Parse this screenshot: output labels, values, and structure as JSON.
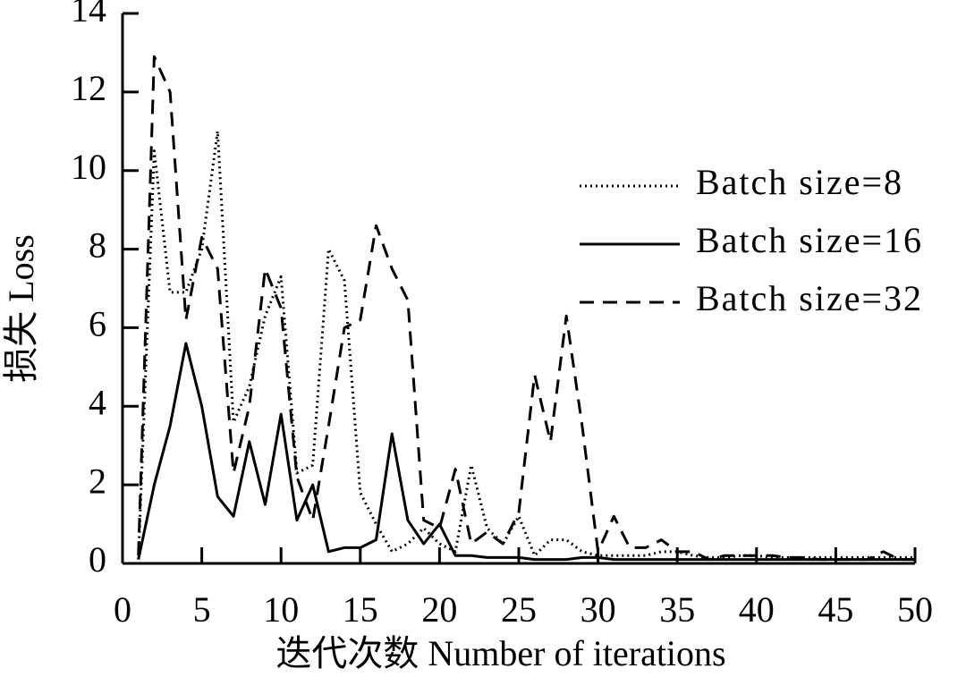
{
  "chart_data": {
    "type": "line",
    "x_label": "迭代次数 Number of iterations",
    "y_label": "损失 Loss",
    "x": [
      1,
      2,
      3,
      4,
      5,
      6,
      7,
      8,
      9,
      10,
      11,
      12,
      13,
      14,
      15,
      16,
      17,
      18,
      19,
      20,
      21,
      22,
      23,
      24,
      25,
      26,
      27,
      28,
      29,
      30,
      31,
      32,
      33,
      34,
      35,
      36,
      37,
      38,
      39,
      40,
      41,
      42,
      43,
      44,
      45,
      46,
      47,
      48,
      49,
      50
    ],
    "series": [
      {
        "name": "Batch size=8",
        "color": "#000000",
        "line_style": "dotted",
        "values": [
          0.1,
          10.5,
          6.9,
          6.9,
          8,
          11,
          3.6,
          4.5,
          6.3,
          7.3,
          2.3,
          2.5,
          8,
          7.2,
          1.8,
          1,
          0.3,
          0.5,
          0.9,
          0.5,
          0.3,
          2.5,
          0.9,
          0.5,
          1.2,
          0.2,
          0.6,
          0.6,
          0.3,
          0.2,
          0.2,
          0.2,
          0.2,
          0.3,
          0.3,
          0.2,
          0.15,
          0.15,
          0.2,
          0.2,
          0.15,
          0.15,
          0.15,
          0.15,
          0.15,
          0.15,
          0.15,
          0.15,
          0.15,
          0.15
        ]
      },
      {
        "name": "Batch size=16",
        "color": "#000000",
        "line_style": "solid",
        "values": [
          0.1,
          2,
          3.5,
          5.6,
          4,
          1.7,
          1.2,
          3.1,
          1.5,
          3.8,
          1.1,
          2,
          0.3,
          0.4,
          0.4,
          0.6,
          3.3,
          1.1,
          0.5,
          1,
          0.2,
          0.2,
          0.15,
          0.15,
          0.15,
          0.1,
          0.1,
          0.1,
          0.15,
          0.15,
          0.1,
          0.1,
          0.1,
          0.1,
          0.1,
          0.1,
          0.1,
          0.1,
          0.1,
          0.1,
          0.1,
          0.1,
          0.1,
          0.1,
          0.1,
          0.1,
          0.1,
          0.1,
          0.1,
          0.1
        ]
      },
      {
        "name": "Batch size=32",
        "color": "#000000",
        "line_style": "dashed",
        "values": [
          0.2,
          12.9,
          12,
          6.2,
          8.3,
          7.5,
          2.3,
          4,
          7.5,
          6.5,
          2.2,
          1.1,
          3.5,
          6,
          6.2,
          8.6,
          7.5,
          6.7,
          1.1,
          0.9,
          2.4,
          0.5,
          0.8,
          0.5,
          1.3,
          4.8,
          3.1,
          6.3,
          3.5,
          0.3,
          1.2,
          0.4,
          0.4,
          0.6,
          0.3,
          0.3,
          0.1,
          0.2,
          0.2,
          0.2,
          0.2,
          0.15,
          0.15,
          0.1,
          0.1,
          0.1,
          0.1,
          0.3,
          0.1,
          0.1
        ]
      }
    ],
    "xlim": [
      0,
      50
    ],
    "xticks": [
      0,
      5,
      10,
      15,
      20,
      25,
      30,
      35,
      40,
      45,
      50
    ],
    "ylim": [
      0,
      14
    ],
    "yticks": [
      0,
      2,
      4,
      6,
      8,
      10,
      12,
      14
    ],
    "grid": false,
    "legend": "upper right"
  }
}
